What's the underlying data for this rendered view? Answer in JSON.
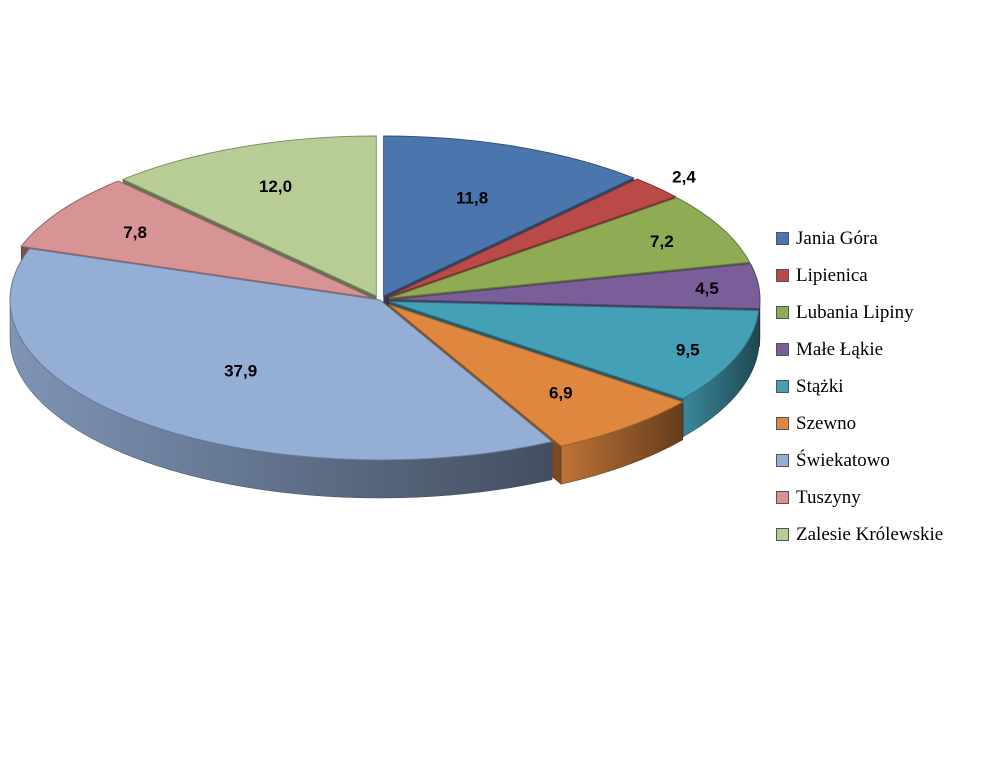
{
  "chart_data": {
    "type": "pie",
    "style": "3d-exploded",
    "legend_position": "right",
    "categories": [
      "Jania Góra",
      "Lipienica",
      "Lubania Lipiny",
      "Małe Łąkie",
      "Stążki",
      "Szewno",
      "Świekatowo",
      "Tuszyny",
      "Zalesie Królewskie"
    ],
    "values": [
      11.8,
      2.4,
      7.2,
      4.5,
      9.5,
      6.9,
      37.9,
      7.8,
      12.0
    ],
    "data_labels": [
      "11,8",
      "2,4",
      "7,2",
      "4,5",
      "9,5",
      "6,9",
      "37,9",
      "7,8",
      "12,0"
    ],
    "colors": [
      "#4a76ad",
      "#b94a48",
      "#8fac55",
      "#7a5e99",
      "#44a0b6",
      "#df873f",
      "#95aed6",
      "#d89494",
      "#b7cd95"
    ]
  }
}
